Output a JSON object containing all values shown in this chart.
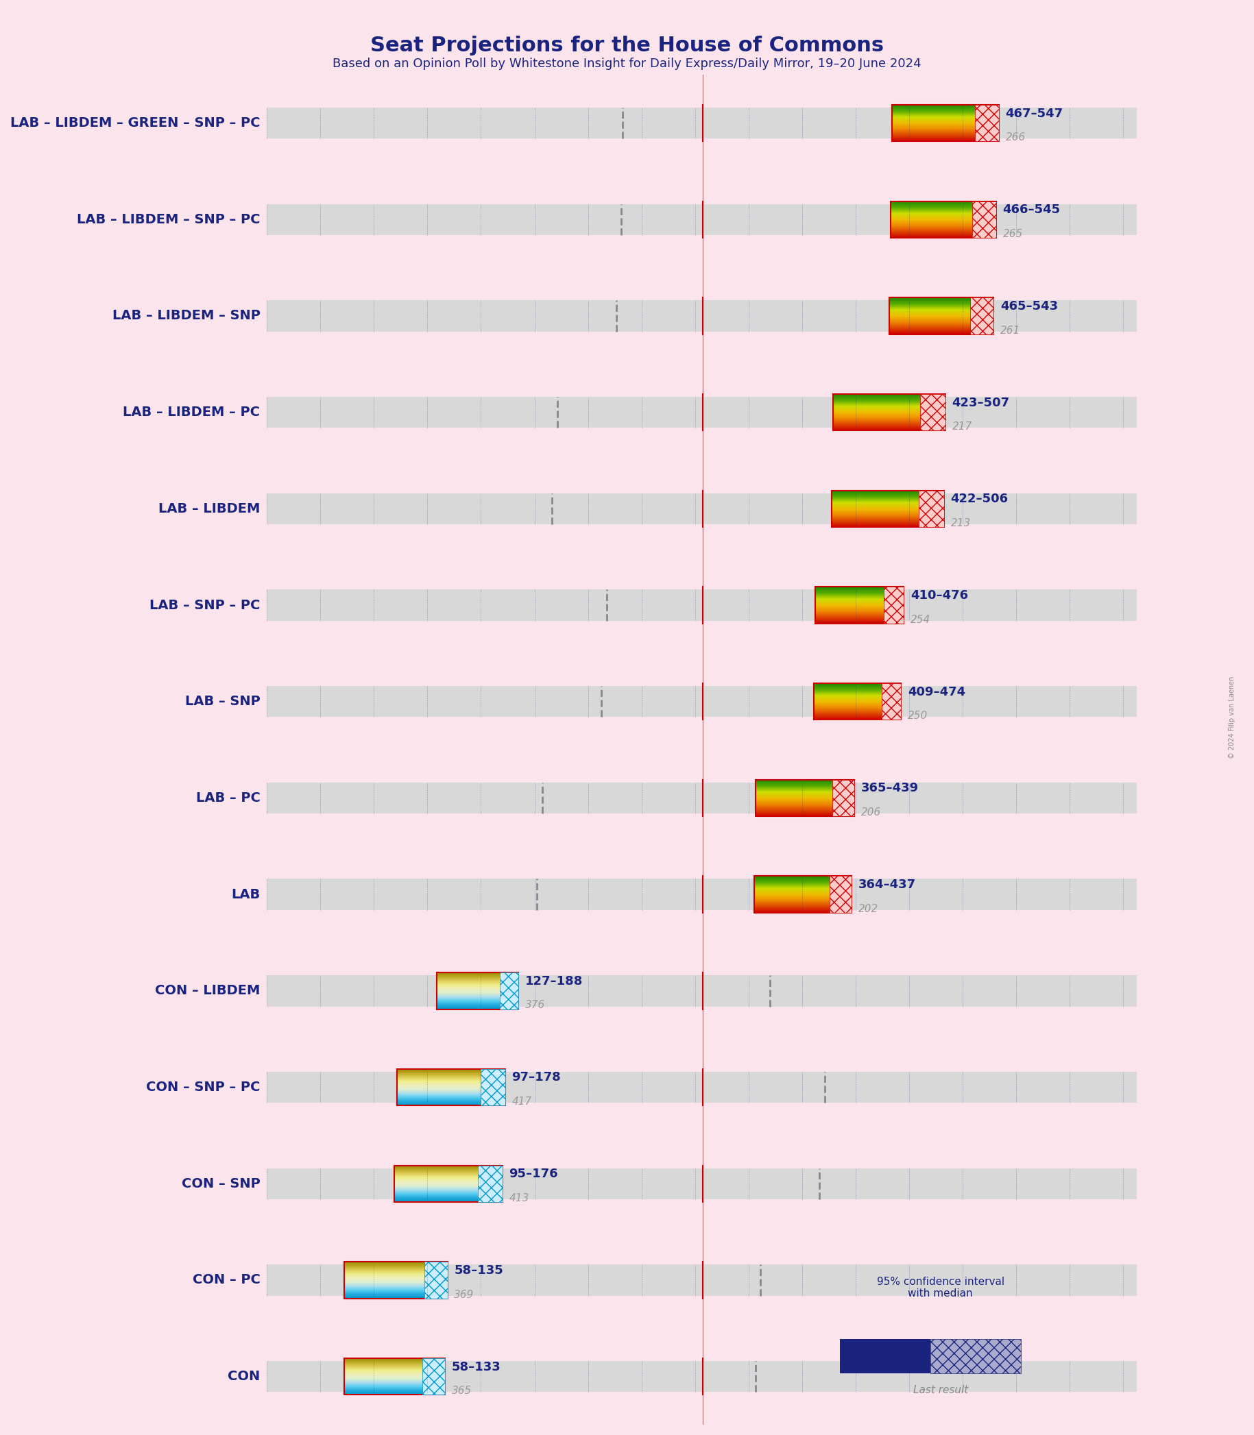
{
  "title": "Seat Projections for the House of Commons",
  "subtitle": "Based on an Opinion Poll by Whitestone Insight for Daily Express/Daily Mirror, 19–20 June 2024",
  "copyright": "© 2024 Filip van Laenen",
  "background_color": "#fce4ec",
  "title_color": "#1a237e",
  "subtitle_color": "#1a237e",
  "majority_line": 326,
  "total_seats": 650,
  "coalitions": [
    {
      "name": "LAB – LIBDEM – GREEN – SNP – PC",
      "low": 467,
      "high": 547,
      "median_label": "467–547",
      "last_result": 266,
      "type": "lab"
    },
    {
      "name": "LAB – LIBDEM – SNP – PC",
      "low": 466,
      "high": 545,
      "median_label": "466–545",
      "last_result": 265,
      "type": "lab"
    },
    {
      "name": "LAB – LIBDEM – SNP",
      "low": 465,
      "high": 543,
      "median_label": "465–543",
      "last_result": 261,
      "type": "lab"
    },
    {
      "name": "LAB – LIBDEM – PC",
      "low": 423,
      "high": 507,
      "median_label": "423–507",
      "last_result": 217,
      "type": "lab"
    },
    {
      "name": "LAB – LIBDEM",
      "low": 422,
      "high": 506,
      "median_label": "422–506",
      "last_result": 213,
      "type": "lab"
    },
    {
      "name": "LAB – SNP – PC",
      "low": 410,
      "high": 476,
      "median_label": "410–476",
      "last_result": 254,
      "type": "lab"
    },
    {
      "name": "LAB – SNP",
      "low": 409,
      "high": 474,
      "median_label": "409–474",
      "last_result": 250,
      "type": "lab"
    },
    {
      "name": "LAB – PC",
      "low": 365,
      "high": 439,
      "median_label": "365–439",
      "last_result": 206,
      "type": "lab"
    },
    {
      "name": "LAB",
      "low": 364,
      "high": 437,
      "median_label": "364–437",
      "last_result": 202,
      "type": "lab"
    },
    {
      "name": "CON – LIBDEM",
      "low": 127,
      "high": 188,
      "median_label": "127–188",
      "last_result": 376,
      "type": "con"
    },
    {
      "name": "CON – SNP – PC",
      "low": 97,
      "high": 178,
      "median_label": "97–178",
      "last_result": 417,
      "type": "con"
    },
    {
      "name": "CON – SNP",
      "low": 95,
      "high": 176,
      "median_label": "95–176",
      "last_result": 413,
      "type": "con"
    },
    {
      "name": "CON – PC",
      "low": 58,
      "high": 135,
      "median_label": "58–135",
      "last_result": 369,
      "type": "con"
    },
    {
      "name": "CON",
      "low": 58,
      "high": 133,
      "median_label": "58–133",
      "last_result": 365,
      "type": "con"
    }
  ],
  "lab_gradient_colors": [
    "#cc0000",
    "#cc3300",
    "#dd6600",
    "#ee9900",
    "#eebb00",
    "#ddcc00",
    "#ccdd00",
    "#99cc00",
    "#66aa00",
    "#449900",
    "#228800"
  ],
  "con_gradient_colors": [
    "#0099cc",
    "#00aadd",
    "#33bbee",
    "#66ccff",
    "#aaddff",
    "#ddeecc",
    "#eeeebb",
    "#eeee99",
    "#dddd66",
    "#ccbb33",
    "#aaaa00"
  ],
  "dotted_bg_color": "#d0d0d0",
  "dot_color": "#1a237e",
  "majority_line_color": "#cc0000",
  "last_result_color": "#9e9e9e",
  "range_text_color": "#1a237e",
  "border_color": "#cc0000",
  "legend_ci_color1": "#1a237e",
  "legend_ci_color2": "#aaaaaa"
}
